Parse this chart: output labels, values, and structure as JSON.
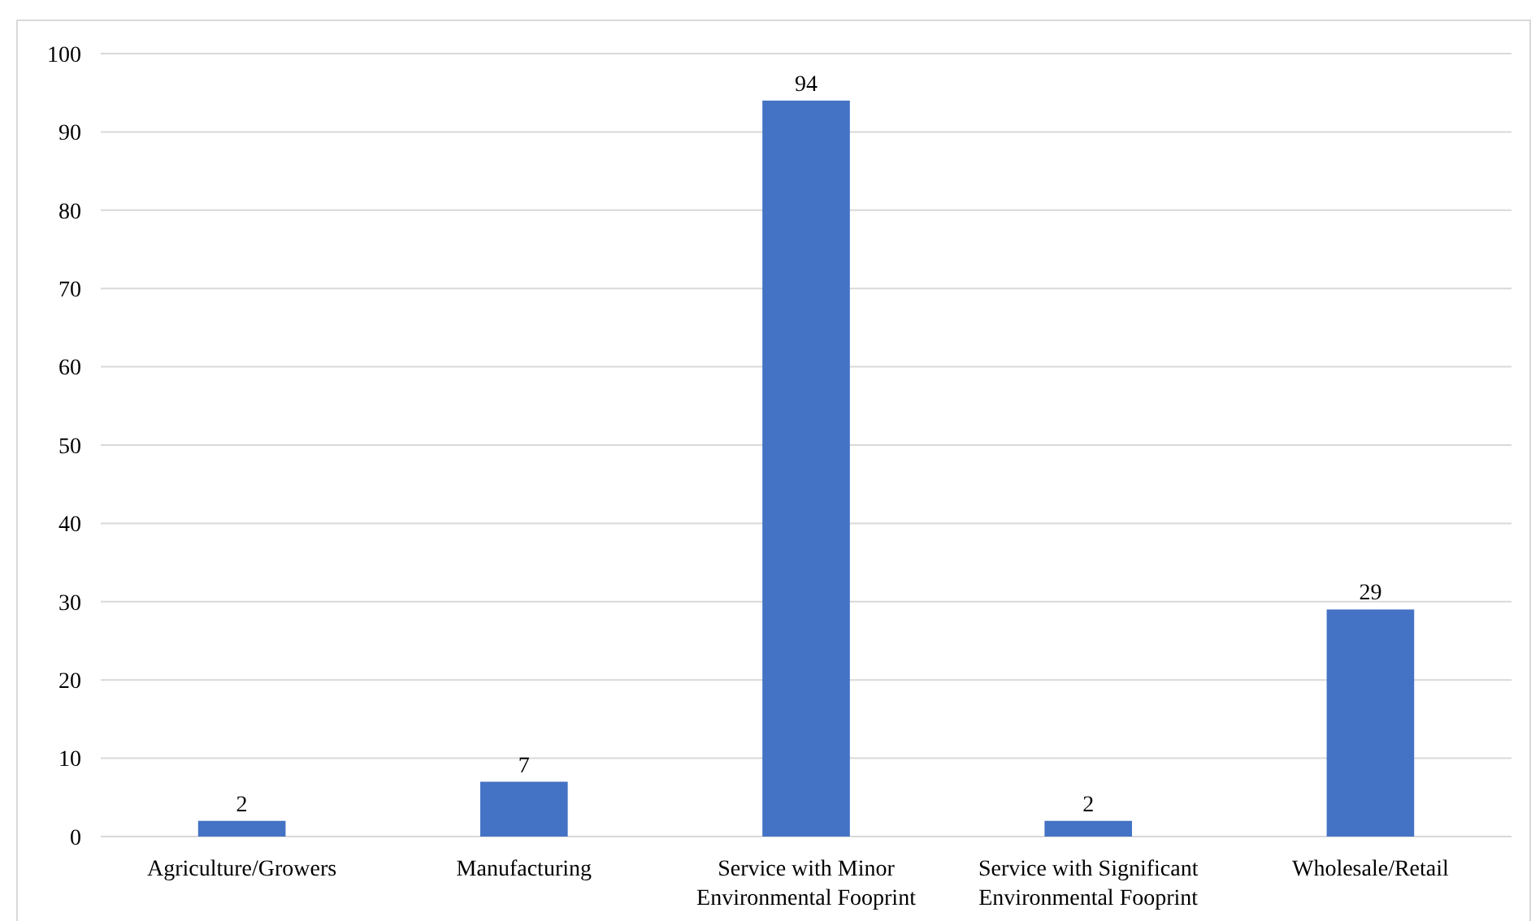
{
  "chart_data": {
    "type": "bar",
    "categories": [
      "Agriculture/Growers",
      "Manufacturing",
      "Service with Minor Environmental Fooprint",
      "Service with Significant Environmental Fooprint",
      "Wholesale/Retail"
    ],
    "values": [
      2,
      7,
      94,
      2,
      29
    ],
    "color": "#4472c4",
    "ylim": [
      0,
      100
    ],
    "yticks": [
      0,
      10,
      20,
      30,
      40,
      50,
      60,
      70,
      80,
      90,
      100
    ],
    "grid": "y",
    "data_labels": true
  }
}
